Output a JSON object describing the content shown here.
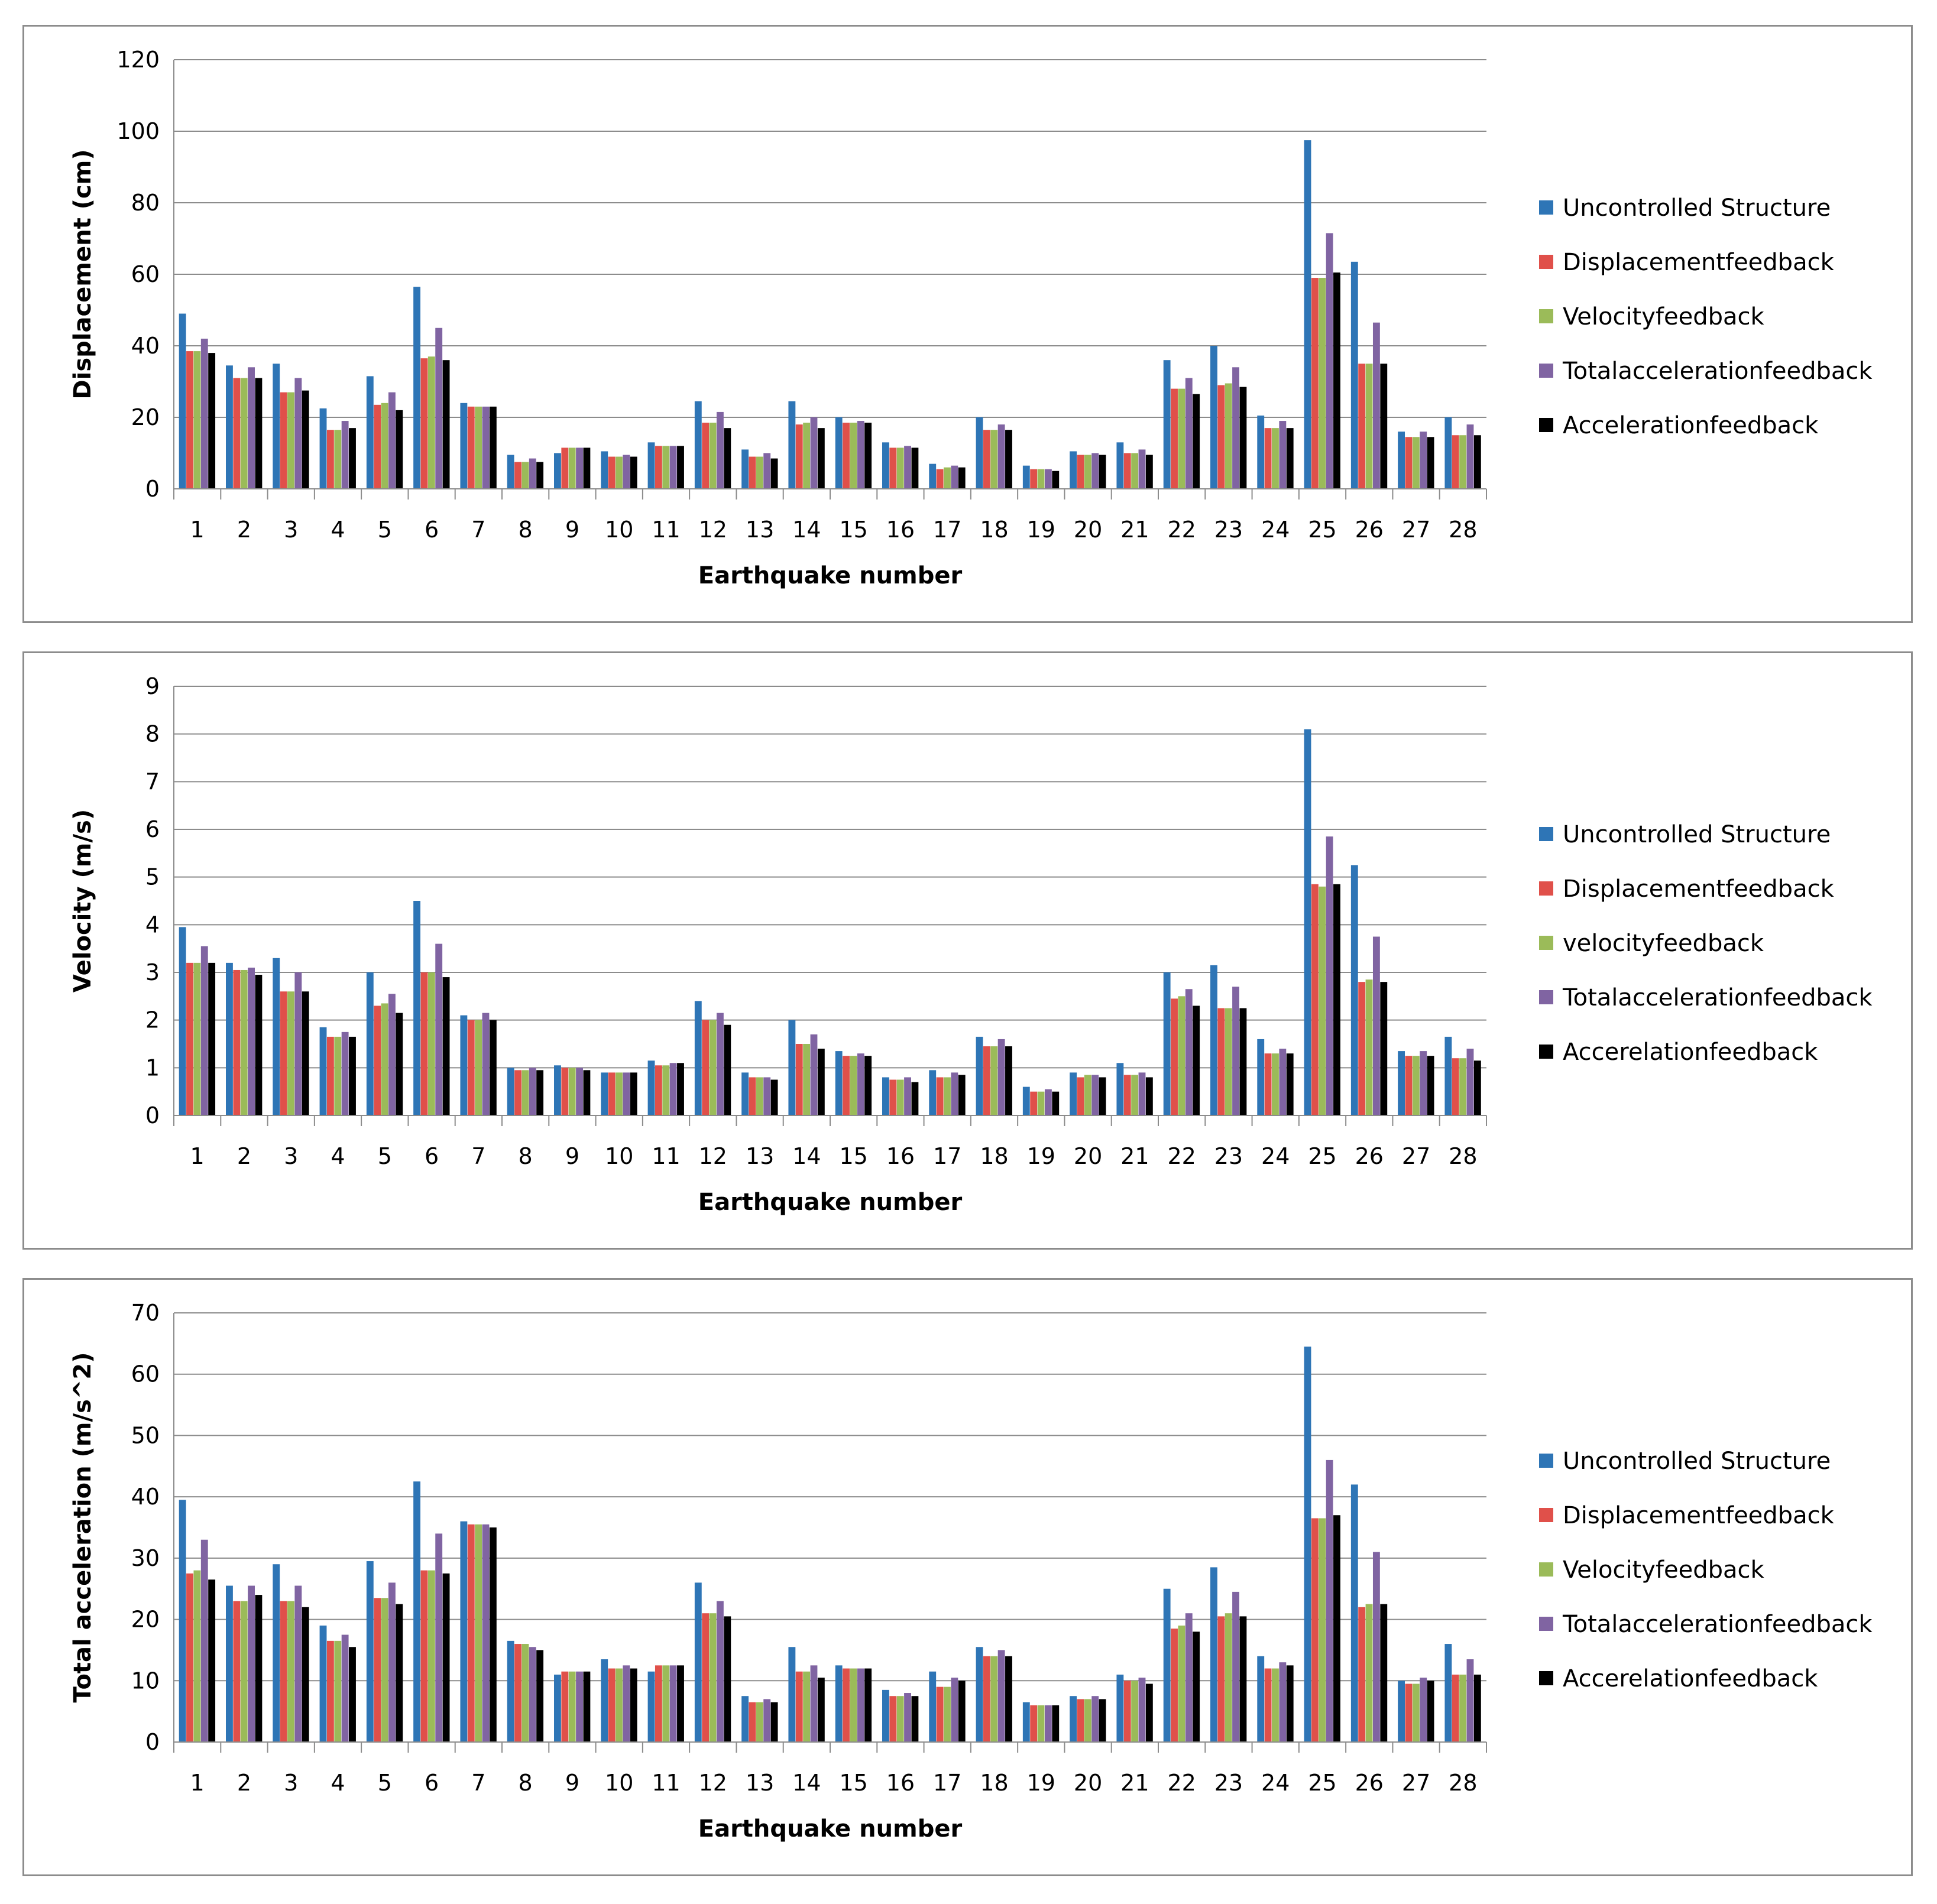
{
  "chart_data": [
    {
      "type": "bar",
      "title": "",
      "xlabel": "Earthquake number",
      "ylabel": "Displacement (cm)",
      "ylim": [
        0,
        120
      ],
      "yticks": [
        0,
        20,
        40,
        60,
        80,
        100,
        120
      ],
      "grid": true,
      "legend_position": "right",
      "categories": [
        "1",
        "2",
        "3",
        "4",
        "5",
        "6",
        "7",
        "8",
        "9",
        "10",
        "11",
        "12",
        "13",
        "14",
        "15",
        "16",
        "17",
        "18",
        "19",
        "20",
        "21",
        "22",
        "23",
        "24",
        "25",
        "26",
        "27",
        "28"
      ],
      "series": [
        {
          "name": "Uncontrolled Structure",
          "color": "#2E75B6",
          "values": [
            49,
            34.5,
            35,
            22.5,
            31.5,
            56.5,
            24,
            9.5,
            10,
            10.5,
            13,
            24.5,
            11,
            24.5,
            20,
            13,
            7,
            20,
            6.5,
            10.5,
            13,
            36,
            40,
            20.5,
            97.5,
            63.5,
            16,
            20
          ]
        },
        {
          "name": "Displacementfeedback",
          "color": "#E0504A",
          "values": [
            38.5,
            31,
            27,
            16.5,
            23.5,
            36.5,
            23,
            7.5,
            11.5,
            9,
            12,
            18.5,
            9,
            18,
            18.5,
            11.5,
            5.5,
            16.5,
            5.5,
            9.5,
            10,
            28,
            29,
            17,
            59,
            35,
            14.5,
            15
          ]
        },
        {
          "name": "Velocityfeedback",
          "color": "#9BBB59",
          "values": [
            38.5,
            31,
            27,
            16.5,
            24,
            37,
            23,
            7.5,
            11.5,
            9,
            12,
            18.5,
            9,
            18.5,
            18.5,
            11.5,
            6,
            16.5,
            5.5,
            9.5,
            10,
            28,
            29.5,
            17,
            59,
            35,
            14.5,
            15
          ]
        },
        {
          "name": "Totalaccelerationfeedback",
          "color": "#8064A2",
          "values": [
            42,
            34,
            31,
            19,
            27,
            45,
            23,
            8.5,
            11.5,
            9.5,
            12,
            21.5,
            10,
            20,
            19,
            12,
            6.5,
            18,
            5.5,
            10,
            11,
            31,
            34,
            19,
            71.5,
            46.5,
            16,
            18
          ]
        },
        {
          "name": "Accelerationfeedback",
          "color": "#000000",
          "values": [
            38,
            31,
            27.5,
            17,
            22,
            36,
            23,
            7.5,
            11.5,
            9,
            12,
            17,
            8.5,
            17,
            18.5,
            11.5,
            6,
            16.5,
            5,
            9.5,
            9.5,
            26.5,
            28.5,
            17,
            60.5,
            35,
            14.5,
            15
          ]
        }
      ]
    },
    {
      "type": "bar",
      "title": "",
      "xlabel": "Earthquake number",
      "ylabel": "Velocity (m/s)",
      "ylim": [
        0,
        9
      ],
      "yticks": [
        0,
        1,
        2,
        3,
        4,
        5,
        6,
        7,
        8,
        9
      ],
      "grid": true,
      "legend_position": "right",
      "categories": [
        "1",
        "2",
        "3",
        "4",
        "5",
        "6",
        "7",
        "8",
        "9",
        "10",
        "11",
        "12",
        "13",
        "14",
        "15",
        "16",
        "17",
        "18",
        "19",
        "20",
        "21",
        "22",
        "23",
        "24",
        "25",
        "26",
        "27",
        "28"
      ],
      "series": [
        {
          "name": "Uncontrolled Structure",
          "color": "#2E75B6",
          "values": [
            3.95,
            3.2,
            3.3,
            1.85,
            3.0,
            4.5,
            2.1,
            1.0,
            1.05,
            0.9,
            1.15,
            2.4,
            0.9,
            2.0,
            1.35,
            0.8,
            0.95,
            1.65,
            0.6,
            0.9,
            1.1,
            3.0,
            3.15,
            1.6,
            8.1,
            5.25,
            1.35,
            1.65
          ]
        },
        {
          "name": "Displacementfeedback",
          "color": "#E0504A",
          "values": [
            3.2,
            3.05,
            2.6,
            1.65,
            2.3,
            3.0,
            2.0,
            0.95,
            1.0,
            0.9,
            1.05,
            2.0,
            0.8,
            1.5,
            1.25,
            0.75,
            0.8,
            1.45,
            0.5,
            0.8,
            0.85,
            2.45,
            2.25,
            1.3,
            4.85,
            2.8,
            1.25,
            1.2
          ]
        },
        {
          "name": "velocityfeedback",
          "color": "#9BBB59",
          "values": [
            3.2,
            3.05,
            2.6,
            1.65,
            2.35,
            3.0,
            2.0,
            0.95,
            1.0,
            0.9,
            1.05,
            2.0,
            0.8,
            1.5,
            1.25,
            0.75,
            0.8,
            1.45,
            0.5,
            0.85,
            0.85,
            2.5,
            2.25,
            1.3,
            4.8,
            2.85,
            1.25,
            1.2
          ]
        },
        {
          "name": "Totalaccelerationfeedback",
          "color": "#8064A2",
          "values": [
            3.55,
            3.1,
            3.0,
            1.75,
            2.55,
            3.6,
            2.15,
            1.0,
            1.0,
            0.9,
            1.1,
            2.15,
            0.8,
            1.7,
            1.3,
            0.8,
            0.9,
            1.6,
            0.55,
            0.85,
            0.9,
            2.65,
            2.7,
            1.4,
            5.85,
            3.75,
            1.35,
            1.4
          ]
        },
        {
          "name": "Accerelationfeedback",
          "color": "#000000",
          "values": [
            3.2,
            2.95,
            2.6,
            1.65,
            2.15,
            2.9,
            2.0,
            0.95,
            0.95,
            0.9,
            1.1,
            1.9,
            0.75,
            1.4,
            1.25,
            0.7,
            0.85,
            1.45,
            0.5,
            0.8,
            0.8,
            2.3,
            2.25,
            1.3,
            4.85,
            2.8,
            1.25,
            1.15
          ]
        }
      ]
    },
    {
      "type": "bar",
      "title": "",
      "xlabel": "Earthquake number",
      "ylabel": "Total acceleration (m/s^2)",
      "ylim": [
        0,
        70
      ],
      "yticks": [
        0,
        10,
        20,
        30,
        40,
        50,
        60,
        70
      ],
      "grid": true,
      "legend_position": "right",
      "categories": [
        "1",
        "2",
        "3",
        "4",
        "5",
        "6",
        "7",
        "8",
        "9",
        "10",
        "11",
        "12",
        "13",
        "14",
        "15",
        "16",
        "17",
        "18",
        "19",
        "20",
        "21",
        "22",
        "23",
        "24",
        "25",
        "26",
        "27",
        "28"
      ],
      "series": [
        {
          "name": "Uncontrolled Structure",
          "color": "#2E75B6",
          "values": [
            39.5,
            25.5,
            29,
            19,
            29.5,
            42.5,
            36,
            16.5,
            11,
            13.5,
            11.5,
            26,
            7.5,
            15.5,
            12.5,
            8.5,
            11.5,
            15.5,
            6.5,
            7.5,
            11,
            25,
            28.5,
            14,
            64.5,
            42,
            10,
            16
          ]
        },
        {
          "name": "Displacementfeedback",
          "color": "#E0504A",
          "values": [
            27.5,
            23,
            23,
            16.5,
            23.5,
            28,
            35.5,
            16,
            11.5,
            12,
            12.5,
            21,
            6.5,
            11.5,
            12,
            7.5,
            9,
            14,
            6,
            7,
            10,
            18.5,
            20.5,
            12,
            36.5,
            22,
            9.5,
            11
          ]
        },
        {
          "name": "Velocityfeedback",
          "color": "#9BBB59",
          "values": [
            28,
            23,
            23,
            16.5,
            23.5,
            28,
            35.5,
            16,
            11.5,
            12,
            12.5,
            21,
            6.5,
            11.5,
            12,
            7.5,
            9,
            14,
            6,
            7,
            10,
            19,
            21,
            12,
            36.5,
            22.5,
            9.5,
            11
          ]
        },
        {
          "name": "Totalaccelerationfeedback",
          "color": "#8064A2",
          "values": [
            33,
            25.5,
            25.5,
            17.5,
            26,
            34,
            35.5,
            15.5,
            11.5,
            12.5,
            12.5,
            23,
            7,
            12.5,
            12,
            8,
            10.5,
            15,
            6,
            7.5,
            10.5,
            21,
            24.5,
            13,
            46,
            31,
            10.5,
            13.5
          ]
        },
        {
          "name": "Accerelationfeedback",
          "color": "#000000",
          "values": [
            26.5,
            24,
            22,
            15.5,
            22.5,
            27.5,
            35,
            15,
            11.5,
            12,
            12.5,
            20.5,
            6.5,
            10.5,
            12,
            7.5,
            10,
            14,
            6,
            7,
            9.5,
            18,
            20.5,
            12.5,
            37,
            22.5,
            10,
            11
          ]
        }
      ]
    }
  ]
}
